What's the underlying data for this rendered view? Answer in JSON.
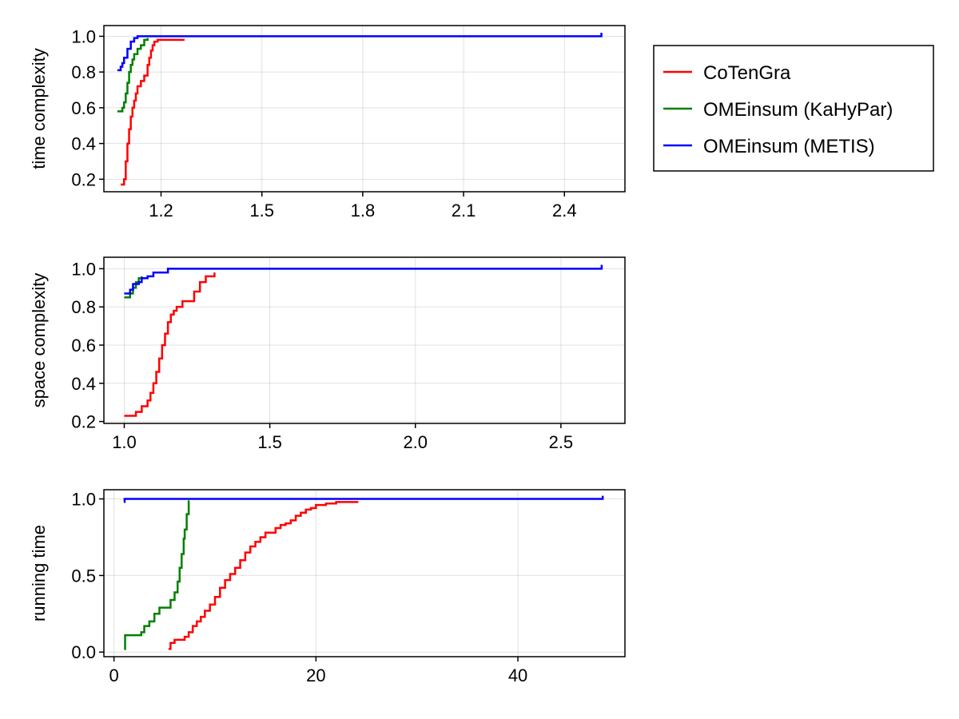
{
  "legend": [
    {
      "label": "CoTenGra",
      "color": "#ff0000"
    },
    {
      "label": "OMEinsum (KaHyPar)",
      "color": "#008000"
    },
    {
      "label": "OMEinsum (METIS)",
      "color": "#0000ff"
    }
  ],
  "chart_data": [
    {
      "type": "line",
      "ylabel": "time complexity",
      "xlabel": "",
      "xlim": [
        1.03,
        2.58
      ],
      "ylim": [
        0.13,
        1.06
      ],
      "xticks": [
        1.2,
        1.5,
        1.8,
        2.1,
        2.4
      ],
      "xtick_labels": [
        "1.2",
        "1.5",
        "1.8",
        "2.1",
        "2.4"
      ],
      "yticks": [
        0.2,
        0.4,
        0.6,
        0.8,
        1.0
      ],
      "ytick_labels": [
        "0.2",
        "0.4",
        "0.6",
        "0.8",
        "1.0"
      ],
      "grid": true,
      "series": [
        {
          "name": "CoTenGra",
          "color": "#ff0000",
          "x": [
            1.08,
            1.09,
            1.095,
            1.1,
            1.105,
            1.11,
            1.115,
            1.12,
            1.125,
            1.13,
            1.14,
            1.15,
            1.16,
            1.165,
            1.17,
            1.175,
            1.18,
            1.19,
            1.27
          ],
          "y": [
            0.17,
            0.2,
            0.3,
            0.4,
            0.48,
            0.55,
            0.6,
            0.64,
            0.68,
            0.72,
            0.75,
            0.78,
            0.84,
            0.88,
            0.92,
            0.95,
            0.97,
            0.98,
            0.98
          ]
        },
        {
          "name": "OMEinsum (KaHyPar)",
          "color": "#008000",
          "x": [
            1.07,
            1.085,
            1.09,
            1.095,
            1.1,
            1.105,
            1.11,
            1.115,
            1.12,
            1.13,
            1.14,
            1.15,
            1.16
          ],
          "y": [
            0.58,
            0.6,
            0.63,
            0.68,
            0.74,
            0.8,
            0.84,
            0.87,
            0.9,
            0.93,
            0.95,
            0.98,
            0.99
          ]
        },
        {
          "name": "OMEinsum (METIS)",
          "color": "#0000ff",
          "x": [
            1.07,
            1.08,
            1.085,
            1.09,
            1.1,
            1.11,
            1.12,
            1.13,
            2.51,
            2.51
          ],
          "y": [
            0.81,
            0.83,
            0.85,
            0.88,
            0.93,
            0.97,
            0.99,
            1.0,
            1.0,
            1.02
          ]
        }
      ]
    },
    {
      "type": "line",
      "ylabel": "space complexity",
      "xlabel": "",
      "xlim": [
        0.93,
        2.72
      ],
      "ylim": [
        0.19,
        1.06
      ],
      "xticks": [
        1.0,
        1.5,
        2.0,
        2.5
      ],
      "xtick_labels": [
        "1.0",
        "1.5",
        "2.0",
        "2.5"
      ],
      "yticks": [
        0.2,
        0.4,
        0.6,
        0.8,
        1.0
      ],
      "ytick_labels": [
        "0.2",
        "0.4",
        "0.6",
        "0.8",
        "1.0"
      ],
      "grid": true,
      "series": [
        {
          "name": "CoTenGra",
          "color": "#ff0000",
          "x": [
            1.0,
            1.04,
            1.06,
            1.08,
            1.09,
            1.1,
            1.11,
            1.12,
            1.13,
            1.14,
            1.15,
            1.16,
            1.17,
            1.18,
            1.2,
            1.22,
            1.24,
            1.26,
            1.28,
            1.31
          ],
          "y": [
            0.23,
            0.25,
            0.28,
            0.31,
            0.35,
            0.4,
            0.46,
            0.53,
            0.6,
            0.66,
            0.72,
            0.76,
            0.78,
            0.8,
            0.83,
            0.83,
            0.88,
            0.93,
            0.96,
            0.98
          ]
        },
        {
          "name": "OMEinsum (KaHyPar)",
          "color": "#008000",
          "x": [
            1.0,
            1.02,
            1.03,
            1.04,
            1.05,
            1.06
          ],
          "y": [
            0.85,
            0.87,
            0.9,
            0.93,
            0.95,
            0.96
          ]
        },
        {
          "name": "OMEinsum (METIS)",
          "color": "#0000ff",
          "x": [
            1.0,
            1.02,
            1.03,
            1.05,
            1.06,
            1.08,
            1.1,
            1.14,
            1.15,
            2.64,
            2.64
          ],
          "y": [
            0.87,
            0.89,
            0.92,
            0.93,
            0.95,
            0.96,
            0.98,
            0.98,
            1.0,
            1.0,
            1.02
          ]
        }
      ]
    },
    {
      "type": "line",
      "ylabel": "running time",
      "xlabel": "",
      "xlim": [
        -1,
        50.6
      ],
      "ylim": [
        -0.03,
        1.06
      ],
      "xticks": [
        0,
        20,
        40
      ],
      "xtick_labels": [
        "0",
        "20",
        "40"
      ],
      "yticks": [
        0.0,
        0.5,
        1.0
      ],
      "ytick_labels": [
        "0.0",
        "0.5",
        "1.0"
      ],
      "grid": true,
      "series": [
        {
          "name": "CoTenGra",
          "color": "#ff0000",
          "x": [
            5.4,
            5.6,
            6.0,
            7.0,
            7.4,
            7.8,
            8.2,
            8.6,
            9.0,
            9.5,
            10.0,
            10.5,
            11.0,
            11.5,
            12.0,
            12.5,
            13.0,
            13.5,
            14.0,
            14.5,
            15.0,
            16.0,
            16.5,
            17.0,
            17.5,
            18.0,
            18.5,
            19.0,
            19.5,
            20.0,
            21.0,
            22.0,
            24.2
          ],
          "y": [
            0.02,
            0.06,
            0.08,
            0.1,
            0.13,
            0.17,
            0.2,
            0.23,
            0.27,
            0.31,
            0.36,
            0.42,
            0.47,
            0.51,
            0.55,
            0.6,
            0.65,
            0.69,
            0.72,
            0.75,
            0.78,
            0.81,
            0.83,
            0.84,
            0.86,
            0.89,
            0.91,
            0.93,
            0.94,
            0.96,
            0.97,
            0.98,
            0.98
          ]
        },
        {
          "name": "OMEinsum (KaHyPar)",
          "color": "#008000",
          "x": [
            1.0,
            1.1,
            2.7,
            3.0,
            3.5,
            4.0,
            4.5,
            5.0,
            5.6,
            6.0,
            6.3,
            6.5,
            6.7,
            6.9,
            7.0,
            7.2,
            7.4
          ],
          "y": [
            0.02,
            0.11,
            0.13,
            0.17,
            0.2,
            0.25,
            0.29,
            0.29,
            0.34,
            0.39,
            0.46,
            0.55,
            0.64,
            0.74,
            0.8,
            0.9,
            0.99
          ]
        },
        {
          "name": "OMEinsum (METIS)",
          "color": "#0000ff",
          "x": [
            1.0,
            1.05,
            48.4,
            48.4
          ],
          "y": [
            0.98,
            1.0,
            1.0,
            1.02
          ]
        }
      ]
    }
  ]
}
